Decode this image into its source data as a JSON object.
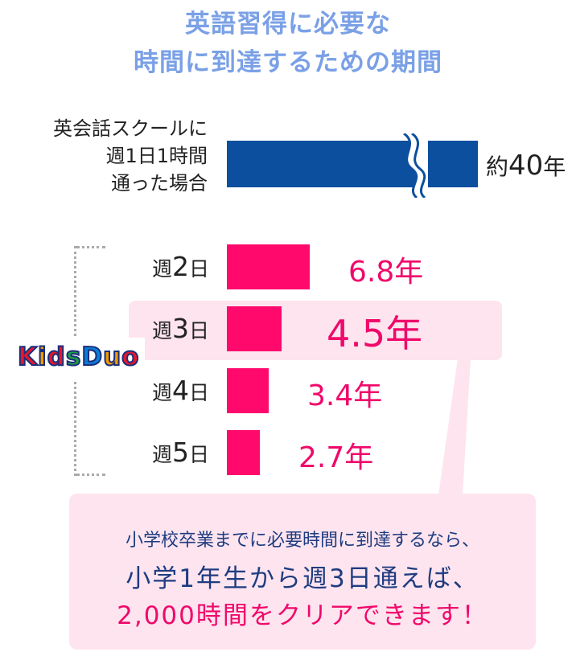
{
  "title": {
    "line1": "英語習得に必要な",
    "line2": "時間に到達するための期間"
  },
  "reference": {
    "label_lines": [
      "英会話スクールに",
      "週1日1時間",
      "通った場合"
    ],
    "value_prefix": "約",
    "value_number": "40",
    "value_unit": "年",
    "bar_color": "#0c4f9e"
  },
  "logo": {
    "text_letters": [
      "K",
      "i",
      "d",
      "s",
      "D",
      "u",
      "o"
    ],
    "colors": [
      "#e8162d",
      "#f39800",
      "#e8162d",
      "#1ca340",
      "#0b7ed8",
      "#f39800",
      "#e8162d"
    ]
  },
  "chart_data": {
    "type": "bar",
    "orientation": "horizontal",
    "categories": [
      "週2日",
      "週3日",
      "週4日",
      "週5日"
    ],
    "series": [
      {
        "values": [
          6.8,
          4.5,
          3.4,
          2.7
        ]
      }
    ],
    "value_labels": [
      "6.8年",
      "4.5年",
      "3.4年",
      "2.7年"
    ],
    "highlight_index": 1,
    "bar_color": "#ff0a6c"
  },
  "rows": [
    {
      "prefix": "週",
      "num": "2",
      "suffix": "日",
      "value": "6.8年"
    },
    {
      "prefix": "週",
      "num": "3",
      "suffix": "日",
      "value": "4.5年"
    },
    {
      "prefix": "週",
      "num": "4",
      "suffix": "日",
      "value": "3.4年"
    },
    {
      "prefix": "週",
      "num": "5",
      "suffix": "日",
      "value": "2.7年"
    }
  ],
  "callout": {
    "line1": "小学校卒業までに必要時間に到達するなら、",
    "line2": "小学1年生から週3日通えば、",
    "line3": "2,000時間をクリアできます！"
  }
}
